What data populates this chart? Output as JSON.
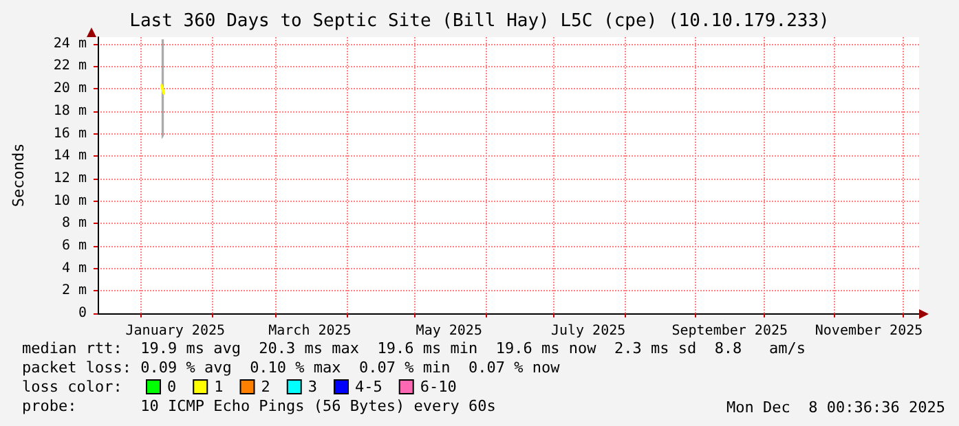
{
  "chart_data": {
    "type": "line",
    "title": "Last 360 Days to Septic Site (Bill Hay) L5C (cpe) (10.10.179.233)",
    "ylabel": "Seconds",
    "legend_title": "loss color:",
    "legend": "bottom left",
    "grid": true,
    "marker": "none",
    "xlim": [
      "2024-12-13",
      "2025-12-08"
    ],
    "xticks": [
      {
        "value": "2025-01-01",
        "label": null
      },
      {
        "value": "2025-01-16",
        "label": "January 2025"
      },
      {
        "value": "2025-02-01",
        "label": null
      },
      {
        "value": "2025-03-01",
        "label": null
      },
      {
        "value": "2025-03-16",
        "label": "March 2025"
      },
      {
        "value": "2025-04-01",
        "label": null
      },
      {
        "value": "2025-05-01",
        "label": null
      },
      {
        "value": "2025-05-16",
        "label": "May 2025"
      },
      {
        "value": "2025-06-01",
        "label": null
      },
      {
        "value": "2025-07-01",
        "label": null
      },
      {
        "value": "2025-07-16",
        "label": "July 2025"
      },
      {
        "value": "2025-08-01",
        "label": null
      },
      {
        "value": "2025-09-01",
        "label": null
      },
      {
        "value": "2025-09-16",
        "label": "September 2025"
      },
      {
        "value": "2025-10-01",
        "label": null
      },
      {
        "value": "2025-11-01",
        "label": null
      },
      {
        "value": "2025-11-16",
        "label": "November 2025"
      },
      {
        "value": "2025-12-01",
        "label": null
      }
    ],
    "ylim": [
      0,
      24.6
    ],
    "yticks": [
      {
        "value": 0,
        "label": "0"
      },
      {
        "value": 2,
        "label": "2 m"
      },
      {
        "value": 4,
        "label": "4 m"
      },
      {
        "value": 6,
        "label": "6 m"
      },
      {
        "value": 8,
        "label": "8 m"
      },
      {
        "value": 10,
        "label": "10 m"
      },
      {
        "value": 12,
        "label": "12 m"
      },
      {
        "value": 14,
        "label": "14 m"
      },
      {
        "value": 16,
        "label": "16 m"
      },
      {
        "value": 18,
        "label": "18 m"
      },
      {
        "value": 20,
        "label": "20 m"
      },
      {
        "value": 22,
        "label": "22 m"
      },
      {
        "value": 24,
        "label": "24 m"
      }
    ],
    "series": [
      {
        "name": "0",
        "color": "#00ff00"
      },
      {
        "name": "1",
        "color": "#ffff00",
        "x": [
          "2025-01-10",
          "2025-01-11"
        ],
        "values": [
          20.3,
          19.6
        ],
        "lower": [
          15.5,
          15.8
        ],
        "upper": [
          24.4,
          24.4
        ]
      },
      {
        "name": "2",
        "color": "#ff8000"
      },
      {
        "name": "3",
        "color": "#00ffff"
      },
      {
        "name": "4-5",
        "color": "#0000ff"
      },
      {
        "name": "6-10",
        "color": "#ff69b4"
      }
    ],
    "annotations": [
      "median rtt:  19.9 ms avg  20.3 ms max  19.6 ms min  19.6 ms now  2.3 ms sd  8.8   am/s",
      "packet loss: 0.09 % avg  0.10 % max  0.07 % min  0.07 % now",
      "probe:       10 ICMP Echo Pings (56 Bytes) every 60s",
      "Mon Dec  8 00:36:36 2025"
    ]
  }
}
